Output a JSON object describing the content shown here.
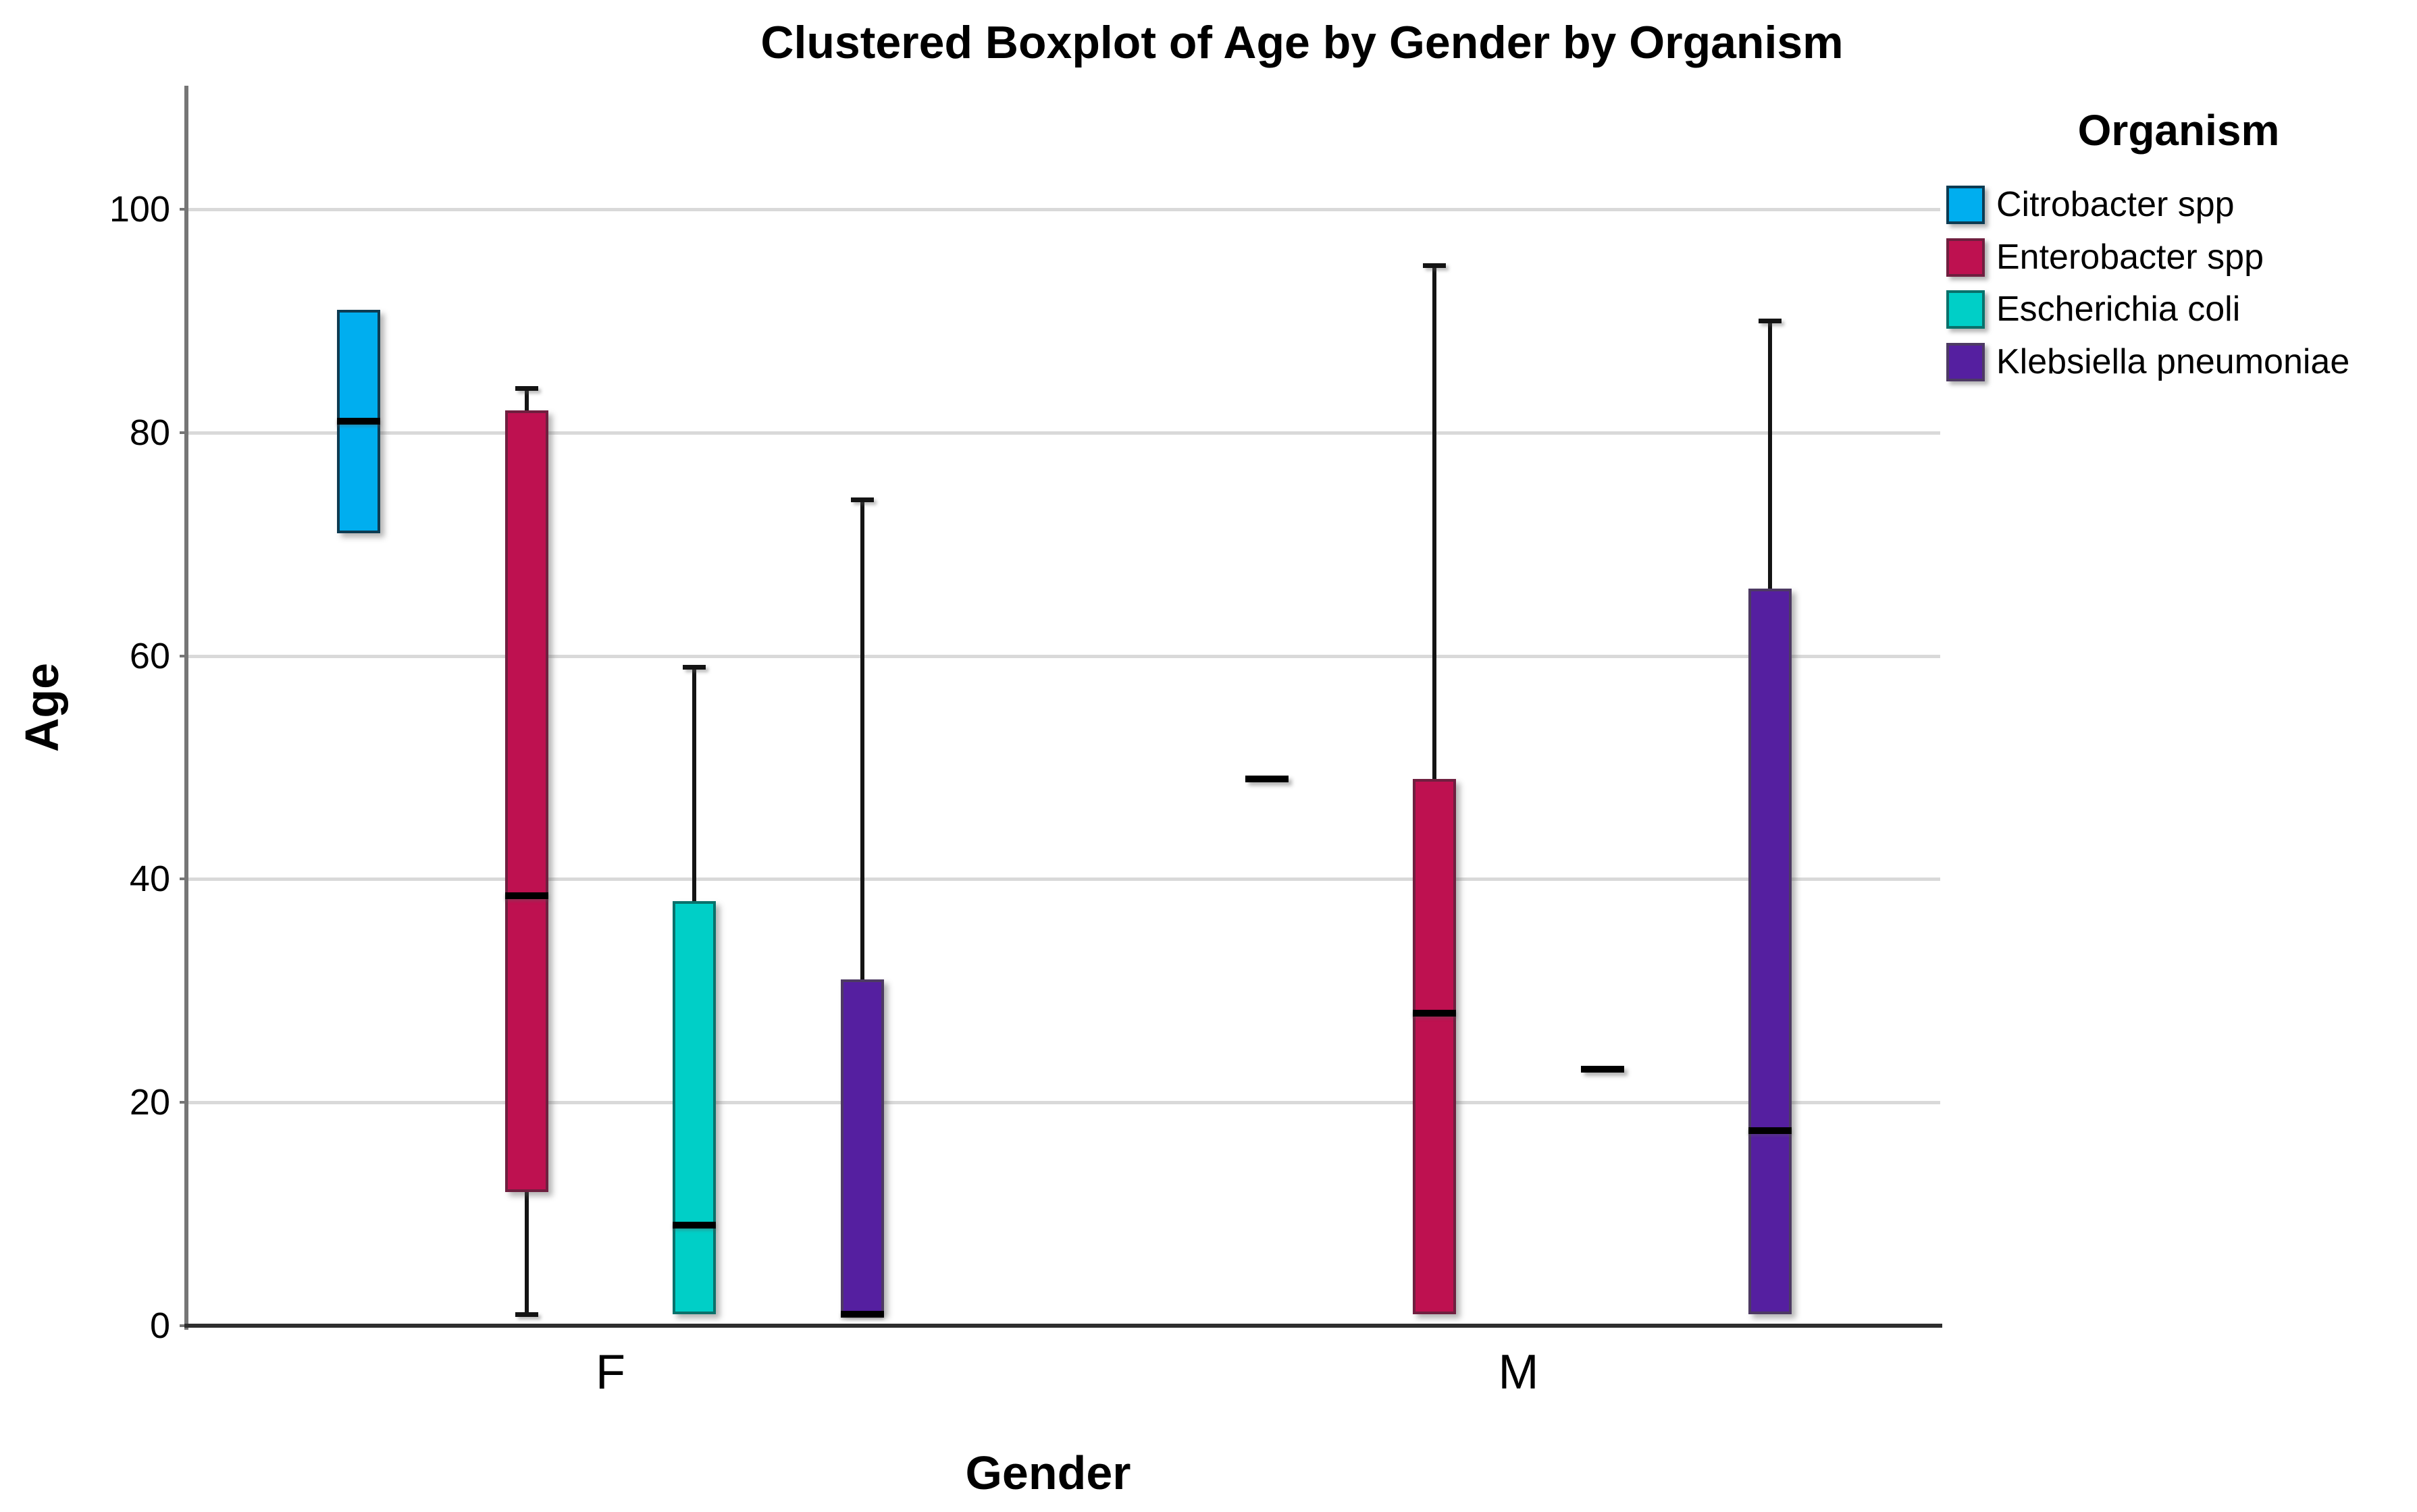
{
  "chart_data": {
    "type": "boxplot",
    "title": "Clustered Boxplot of Age by Gender by Organism",
    "xlabel": "Gender",
    "ylabel": "Age",
    "groups": [
      "F",
      "M"
    ],
    "y_ticks": [
      0,
      20,
      40,
      60,
      80,
      100
    ],
    "ylim": [
      0,
      111
    ],
    "grid": "horizontal",
    "legend_title": "Organism",
    "legend_position": "top-right",
    "series": [
      {
        "name": "Citrobacter spp",
        "fill": "#00AEEF",
        "stroke": "#0D3B52",
        "data": [
          {
            "group": "F",
            "q1": 71,
            "median": 81,
            "q3": 91,
            "whisker_low": null,
            "whisker_high": null
          },
          {
            "group": "M",
            "median_only": 49
          }
        ]
      },
      {
        "name": "Enterobacter spp",
        "fill": "#BE1150",
        "stroke": "#6F1F3F",
        "data": [
          {
            "group": "F",
            "q1": 12,
            "median": 38.5,
            "q3": 82,
            "whisker_low": 1,
            "whisker_high": 84
          },
          {
            "group": "M",
            "q1": 1,
            "median": 28,
            "q3": 49,
            "whisker_low": null,
            "whisker_high": 95
          }
        ]
      },
      {
        "name": "Escherichia coli",
        "fill": "#00CFC7",
        "stroke": "#0A716B",
        "data": [
          {
            "group": "F",
            "q1": 1,
            "median": 9,
            "q3": 38,
            "whisker_low": null,
            "whisker_high": 59
          },
          {
            "group": "M",
            "median_only": 23
          }
        ]
      },
      {
        "name": "Klebsiella pneumoniae",
        "fill": "#551FA0",
        "stroke": "#4D3A63",
        "data": [
          {
            "group": "F",
            "q1": 1,
            "median": 1,
            "q3": 31,
            "whisker_low": null,
            "whisker_high": 74
          },
          {
            "group": "M",
            "q1": 1,
            "median": 17.5,
            "q3": 66,
            "whisker_low": null,
            "whisker_high": 90
          }
        ]
      }
    ]
  }
}
